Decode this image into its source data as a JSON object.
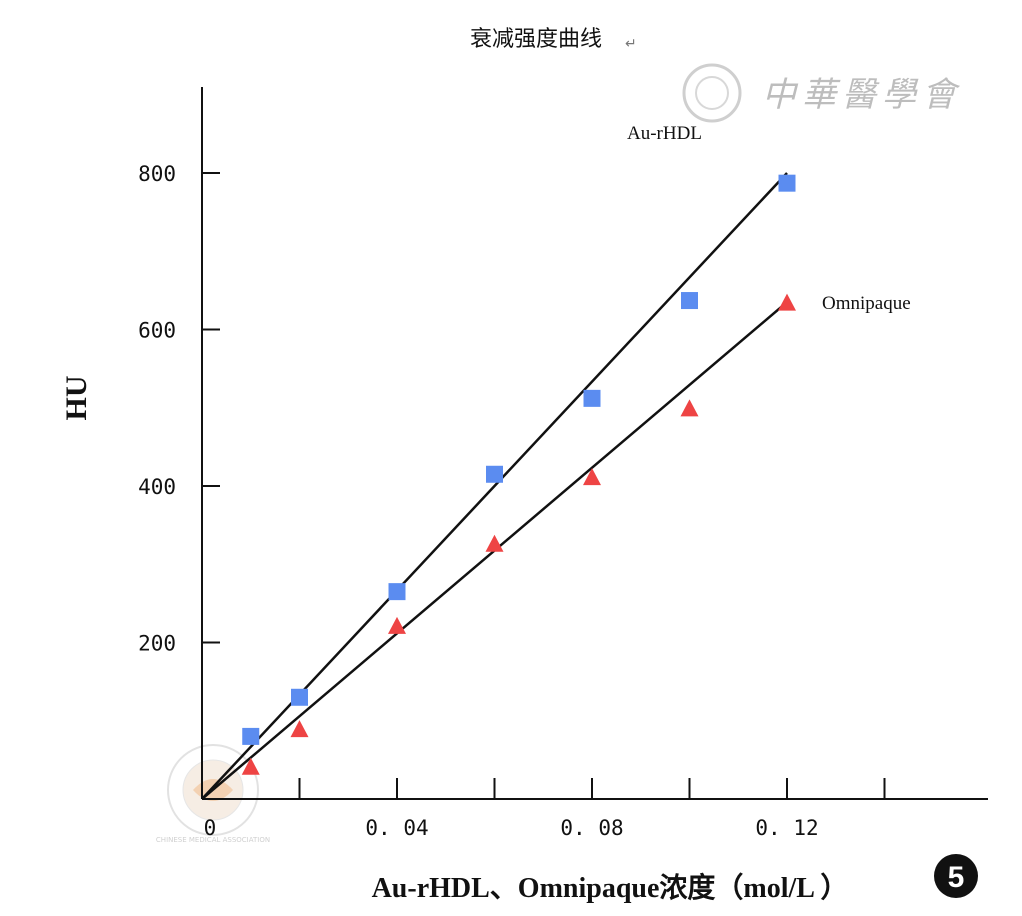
{
  "watermark": {
    "text": "中華醫學會",
    "seal_text": "CHINESE MEDICAL ASSOCIATION"
  },
  "badge": {
    "text": "5"
  },
  "chart_data": {
    "type": "scatter",
    "title": "衰减强度曲线",
    "xlabel": "Au-rHDL、Omnipaque浓度（mol/L ）",
    "ylabel": "HU",
    "xlim": [
      0,
      0.16
    ],
    "ylim": [
      0,
      800
    ],
    "x_ticks": [
      0,
      0.02,
      0.04,
      0.06,
      0.08,
      0.1,
      0.12,
      0.14
    ],
    "x_tick_labels": [
      "0",
      "",
      "0. 04",
      "",
      "0. 08",
      "",
      "0. 12",
      ""
    ],
    "y_ticks": [
      200,
      400,
      600,
      800
    ],
    "y_tick_labels": [
      "200",
      "400",
      "600",
      "800"
    ],
    "grid": false,
    "legend": "inline labels at end of lines",
    "series": [
      {
        "name": "Au-rHDL",
        "marker": "square",
        "color": "#5b8cf0",
        "x": [
          0.01,
          0.02,
          0.04,
          0.06,
          0.08,
          0.1,
          0.12
        ],
        "y": [
          80,
          130,
          265,
          415,
          512,
          637,
          787
        ],
        "fit": {
          "x0": 0,
          "y0": 0,
          "x1": 0.12,
          "y1": 800
        }
      },
      {
        "name": "Omnipaque",
        "marker": "triangle",
        "color": "#ee4444",
        "x": [
          0.01,
          0.02,
          0.04,
          0.06,
          0.08,
          0.1,
          0.12
        ],
        "y": [
          40,
          88,
          220,
          325,
          410,
          498,
          633
        ],
        "fit": {
          "x0": 0,
          "y0": 0,
          "x1": 0.12,
          "y1": 635
        }
      }
    ]
  }
}
